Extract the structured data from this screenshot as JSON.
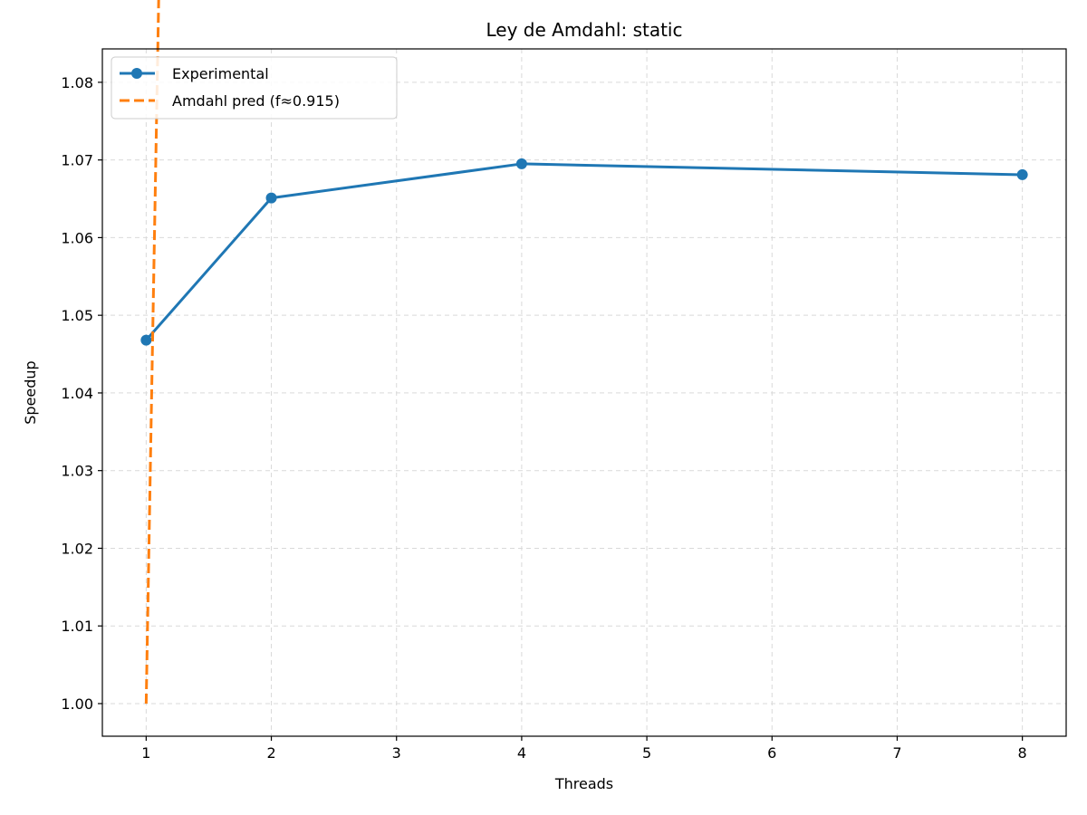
{
  "chart_data": {
    "type": "line",
    "title": "Ley de Amdahl: static",
    "xlabel": "Threads",
    "ylabel": "Speedup",
    "xlim": [
      0.65,
      8.35
    ],
    "ylim": [
      0.9958,
      1.0843
    ],
    "x_ticks": [
      1,
      2,
      3,
      4,
      5,
      6,
      7,
      8
    ],
    "y_ticks": [
      1.0,
      1.01,
      1.02,
      1.03,
      1.04,
      1.05,
      1.06,
      1.07,
      1.08
    ],
    "y_tick_labels": [
      "1.00",
      "1.01",
      "1.02",
      "1.03",
      "1.04",
      "1.05",
      "1.06",
      "1.07",
      "1.08"
    ],
    "grid": true,
    "legend_position": "top-left",
    "series": [
      {
        "name": "Experimental",
        "style": "solid-markers",
        "color": "#1f77b4",
        "x": [
          1,
          2,
          4,
          8
        ],
        "y": [
          1.0468,
          1.0651,
          1.0695,
          1.0681
        ]
      },
      {
        "name": "Amdahl pred (f≈0.915)",
        "style": "dashed",
        "color": "#ff7f0e",
        "model": "amdahl",
        "f": 0.915,
        "scale": 1.0
      }
    ]
  }
}
